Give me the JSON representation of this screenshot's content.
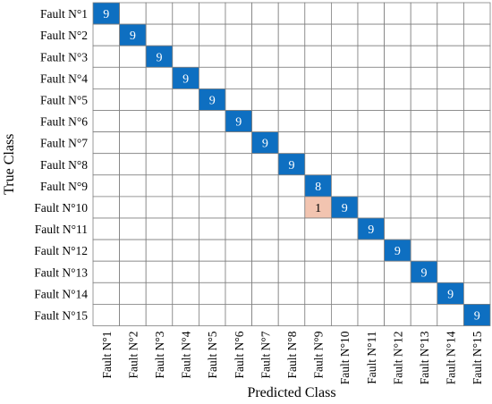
{
  "chart_data": {
    "type": "heatmap",
    "title": "",
    "xlabel": "Predicted Class",
    "ylabel": "True Class",
    "rows": [
      "Fault N°1",
      "Fault N°2",
      "Fault N°3",
      "Fault N°4",
      "Fault N°5",
      "Fault N°6",
      "Fault N°7",
      "Fault N°8",
      "Fault N°9",
      "Fault N°10",
      "Fault N°11",
      "Fault N°12",
      "Fault N°13",
      "Fault N°14",
      "Fault N°15"
    ],
    "columns": [
      "Fault N°1",
      "Fault N°2",
      "Fault N°3",
      "Fault N°4",
      "Fault N°5",
      "Fault N°6",
      "Fault N°7",
      "Fault N°8",
      "Fault N°9",
      "Fault N°10",
      "Fault N°11",
      "Fault N°12",
      "Fault N°13",
      "Fault N°14",
      "Fault N°15"
    ],
    "cells": [
      {
        "row": 0,
        "col": 0,
        "value": 9
      },
      {
        "row": 1,
        "col": 1,
        "value": 9
      },
      {
        "row": 2,
        "col": 2,
        "value": 9
      },
      {
        "row": 3,
        "col": 3,
        "value": 9
      },
      {
        "row": 4,
        "col": 4,
        "value": 9
      },
      {
        "row": 5,
        "col": 5,
        "value": 9
      },
      {
        "row": 6,
        "col": 6,
        "value": 9
      },
      {
        "row": 7,
        "col": 7,
        "value": 9
      },
      {
        "row": 8,
        "col": 8,
        "value": 8
      },
      {
        "row": 9,
        "col": 8,
        "value": 1
      },
      {
        "row": 9,
        "col": 9,
        "value": 9
      },
      {
        "row": 10,
        "col": 10,
        "value": 9
      },
      {
        "row": 11,
        "col": 11,
        "value": 9
      },
      {
        "row": 12,
        "col": 12,
        "value": 9
      },
      {
        "row": 13,
        "col": 13,
        "value": 9
      },
      {
        "row": 14,
        "col": 14,
        "value": 9
      }
    ],
    "colors": {
      "correct": "#0e6fc1",
      "correct_text": "#ffffff",
      "error": "#f2c4b0",
      "error_text": "#000000",
      "empty": "#ffffff",
      "grid": "#7f7f7f"
    }
  }
}
